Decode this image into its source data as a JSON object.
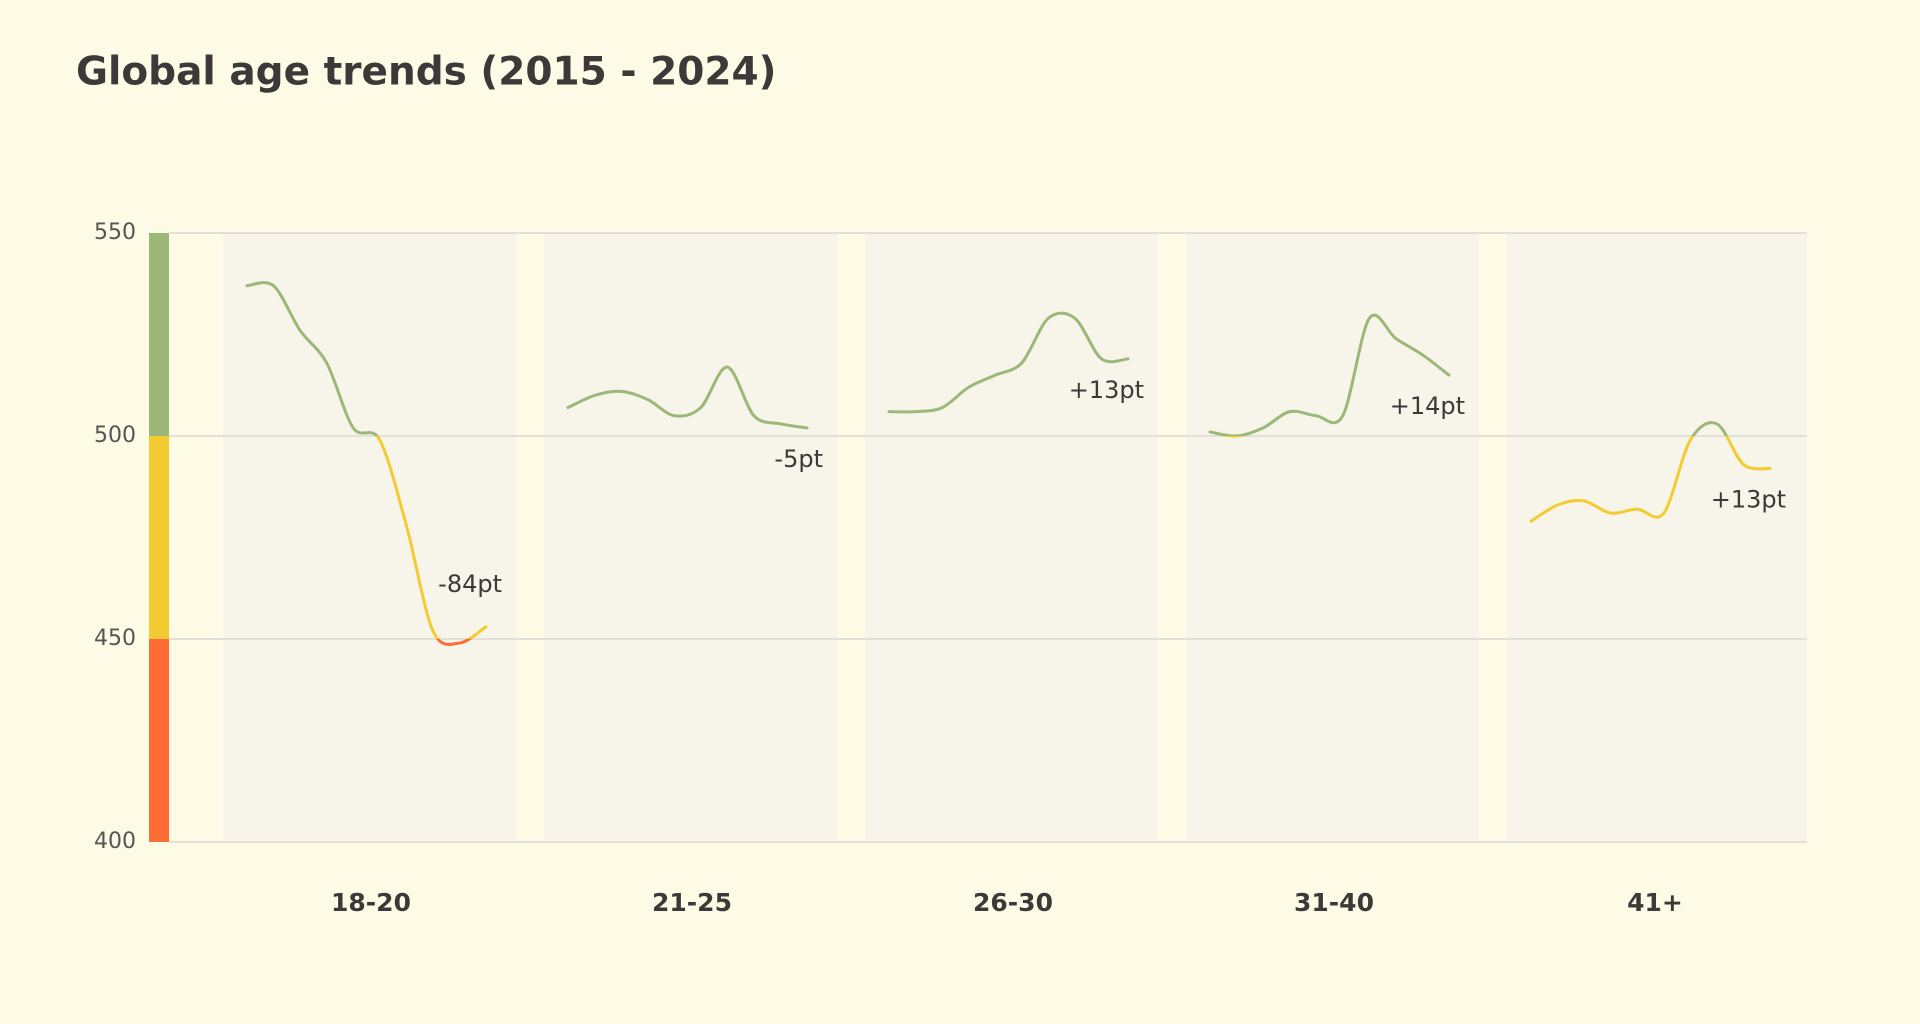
{
  "chart_data": {
    "type": "line",
    "title": "Global age trends (2015 - 2024)",
    "ylim": [
      400,
      550
    ],
    "yticks": [
      400,
      450,
      500,
      550
    ],
    "grid": true,
    "bands": [
      {
        "from": 500,
        "to": 550,
        "color": "#9cb878"
      },
      {
        "from": 450,
        "to": 500,
        "color": "#f2cc30"
      },
      {
        "from": 400,
        "to": 450,
        "color": "#ff6b35"
      }
    ],
    "series": [
      {
        "name": "18-20",
        "label": "-84pt",
        "values": [
          537,
          537,
          526,
          518,
          502,
          499,
          478,
          452,
          449,
          453
        ]
      },
      {
        "name": "21-25",
        "label": "-5pt",
        "values": [
          507,
          510,
          511,
          509,
          505,
          507,
          517,
          505,
          503,
          502
        ]
      },
      {
        "name": "26-30",
        "label": "+13pt",
        "values": [
          506,
          506,
          507,
          512,
          515,
          518,
          529,
          529,
          519,
          519
        ]
      },
      {
        "name": "31-40",
        "label": "+14pt",
        "values": [
          501,
          500,
          502,
          506,
          505,
          505,
          529,
          524,
          520,
          515
        ]
      },
      {
        "name": "41+",
        "label": "+13pt",
        "values": [
          479,
          483,
          484,
          481,
          482,
          481,
          499,
          503,
          493,
          492
        ]
      }
    ]
  }
}
